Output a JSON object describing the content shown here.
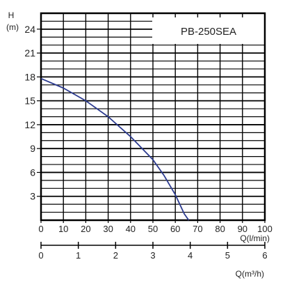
{
  "chart_data": {
    "type": "line",
    "title": "PB-250SEA",
    "ylabel_top": "H",
    "ylabel_unit": "(m)",
    "xlabel_lpm": "Q(l/min)",
    "xlabel_m3h": "Q(m³/h)",
    "xlim": [
      0,
      100
    ],
    "ylim": [
      0,
      26
    ],
    "x2lim": [
      0,
      6
    ],
    "y_ticks": [
      3,
      6,
      9,
      12,
      15,
      18,
      21,
      24
    ],
    "x_ticks": [
      0,
      10,
      20,
      30,
      40,
      50,
      60,
      70,
      80,
      90,
      100
    ],
    "x2_ticks": [
      0,
      1,
      2,
      3,
      4,
      5,
      6
    ],
    "grid": true,
    "series": [
      {
        "color": "#2b3a8f",
        "x": [
          0,
          10,
          20,
          30,
          40,
          50,
          55,
          60,
          64,
          66
        ],
        "y": [
          17.8,
          16.6,
          15.0,
          13.0,
          10.5,
          7.6,
          5.6,
          3.2,
          0.8,
          0.0
        ]
      }
    ]
  }
}
